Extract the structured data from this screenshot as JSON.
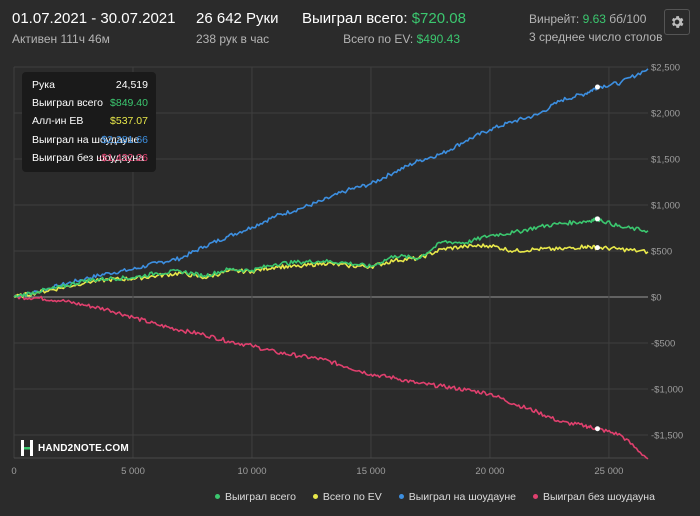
{
  "header": {
    "date_range": "01.07.2021 - 30.07.2021",
    "active_time": "Активен 111ч 46м",
    "hands": "26 642 Руки",
    "hands_per_hour": "238 рук в час",
    "won_total_label": "Выиграл всего:",
    "won_total_value": "$720.08",
    "ev_label": "Всего по EV:",
    "ev_value": "$490.43",
    "winrate_label": "Винрейт:",
    "winrate_value": "9.63",
    "winrate_unit": "бб/100",
    "avg_tables": "3 среднее число столов",
    "settings_icon": "gear-icon"
  },
  "tooltip": {
    "rows": [
      {
        "label": "Рука",
        "value": "24,519",
        "color": "#ffffff"
      },
      {
        "label": "Выиграл всего",
        "value": "$849.40",
        "color": "#3bc76f"
      },
      {
        "label": "Алл-ин EB",
        "value": "$537.07",
        "color": "#e8e84a"
      },
      {
        "label": "Выиграл на шоудауне",
        "value": "$2,281.66",
        "color": "#3d8fe0"
      },
      {
        "label": "Выиграл без шоудауна",
        "value": "-$1,432.26",
        "color": "#e0406e"
      }
    ]
  },
  "logo": {
    "text": "HAND2NOTE.COM"
  },
  "chart_data": {
    "type": "line",
    "xlim": [
      0,
      26642
    ],
    "ylim": [
      -1750,
      2500
    ],
    "x_ticks": [
      0,
      5000,
      10000,
      15000,
      20000,
      25000
    ],
    "x_tick_labels": [
      "0",
      "5 000",
      "10 000",
      "15 000",
      "20 000",
      "25 000"
    ],
    "y_ticks": [
      2500,
      2000,
      1500,
      1000,
      500,
      0,
      -500,
      -1000,
      -1500
    ],
    "y_tick_labels": [
      "$2,500",
      "$2,000",
      "$1,500",
      "$1,000",
      "$500",
      "$0",
      "-$500",
      "-$1,000",
      "-$1,500"
    ],
    "grid": true,
    "hover_x": 24519,
    "series": [
      {
        "name": "Выиграл всего",
        "color": "#3bc76f",
        "points": [
          [
            0,
            0
          ],
          [
            1000,
            60
          ],
          [
            2000,
            110
          ],
          [
            3000,
            180
          ],
          [
            4000,
            200
          ],
          [
            5000,
            210
          ],
          [
            6000,
            260
          ],
          [
            7000,
            280
          ],
          [
            8000,
            230
          ],
          [
            9000,
            300
          ],
          [
            10000,
            290
          ],
          [
            11000,
            360
          ],
          [
            12000,
            380
          ],
          [
            13000,
            390
          ],
          [
            14000,
            370
          ],
          [
            15000,
            330
          ],
          [
            16000,
            450
          ],
          [
            17000,
            420
          ],
          [
            18000,
            600
          ],
          [
            19000,
            590
          ],
          [
            20000,
            670
          ],
          [
            21000,
            700
          ],
          [
            22000,
            760
          ],
          [
            23000,
            800
          ],
          [
            24000,
            820
          ],
          [
            24519,
            849
          ],
          [
            25500,
            760
          ],
          [
            26642,
            720
          ]
        ]
      },
      {
        "name": "Всего по EV",
        "color": "#e8e84a",
        "points": [
          [
            0,
            0
          ],
          [
            1000,
            50
          ],
          [
            2000,
            100
          ],
          [
            3000,
            160
          ],
          [
            4000,
            190
          ],
          [
            5000,
            200
          ],
          [
            6000,
            230
          ],
          [
            7000,
            260
          ],
          [
            8000,
            210
          ],
          [
            9000,
            280
          ],
          [
            10000,
            280
          ],
          [
            11000,
            330
          ],
          [
            12000,
            330
          ],
          [
            13000,
            370
          ],
          [
            14000,
            340
          ],
          [
            15000,
            330
          ],
          [
            16000,
            400
          ],
          [
            17000,
            420
          ],
          [
            18000,
            520
          ],
          [
            19000,
            550
          ],
          [
            20000,
            560
          ],
          [
            21000,
            500
          ],
          [
            22000,
            520
          ],
          [
            23000,
            520
          ],
          [
            24000,
            550
          ],
          [
            24519,
            537
          ],
          [
            25500,
            520
          ],
          [
            26642,
            490
          ]
        ]
      },
      {
        "name": "Выиграл на шоудауне",
        "color": "#3d8fe0",
        "points": [
          [
            0,
            0
          ],
          [
            1000,
            60
          ],
          [
            2000,
            130
          ],
          [
            3000,
            200
          ],
          [
            4000,
            260
          ],
          [
            5000,
            300
          ],
          [
            6000,
            370
          ],
          [
            7000,
            420
          ],
          [
            8000,
            550
          ],
          [
            9000,
            660
          ],
          [
            10000,
            760
          ],
          [
            11000,
            880
          ],
          [
            12000,
            960
          ],
          [
            13000,
            1050
          ],
          [
            14000,
            1160
          ],
          [
            15000,
            1230
          ],
          [
            16000,
            1360
          ],
          [
            17000,
            1480
          ],
          [
            18000,
            1560
          ],
          [
            19000,
            1700
          ],
          [
            20000,
            1820
          ],
          [
            21000,
            1910
          ],
          [
            22000,
            1980
          ],
          [
            23000,
            2140
          ],
          [
            24000,
            2210
          ],
          [
            24519,
            2282
          ],
          [
            25500,
            2330
          ],
          [
            26642,
            2480
          ]
        ]
      },
      {
        "name": "Выиграл без шоудауна",
        "color": "#e0406e",
        "points": [
          [
            0,
            0
          ],
          [
            1000,
            -10
          ],
          [
            2000,
            -40
          ],
          [
            3000,
            -90
          ],
          [
            4000,
            -140
          ],
          [
            5000,
            -220
          ],
          [
            6000,
            -300
          ],
          [
            7000,
            -360
          ],
          [
            8000,
            -410
          ],
          [
            9000,
            -480
          ],
          [
            10000,
            -530
          ],
          [
            11000,
            -600
          ],
          [
            12000,
            -640
          ],
          [
            13000,
            -680
          ],
          [
            14000,
            -760
          ],
          [
            15000,
            -840
          ],
          [
            16000,
            -880
          ],
          [
            17000,
            -940
          ],
          [
            18000,
            -970
          ],
          [
            19000,
            -1010
          ],
          [
            20000,
            -1050
          ],
          [
            21000,
            -1160
          ],
          [
            22000,
            -1250
          ],
          [
            23000,
            -1360
          ],
          [
            24000,
            -1400
          ],
          [
            24519,
            -1432
          ],
          [
            25500,
            -1500
          ],
          [
            26642,
            -1760
          ]
        ]
      }
    ]
  }
}
